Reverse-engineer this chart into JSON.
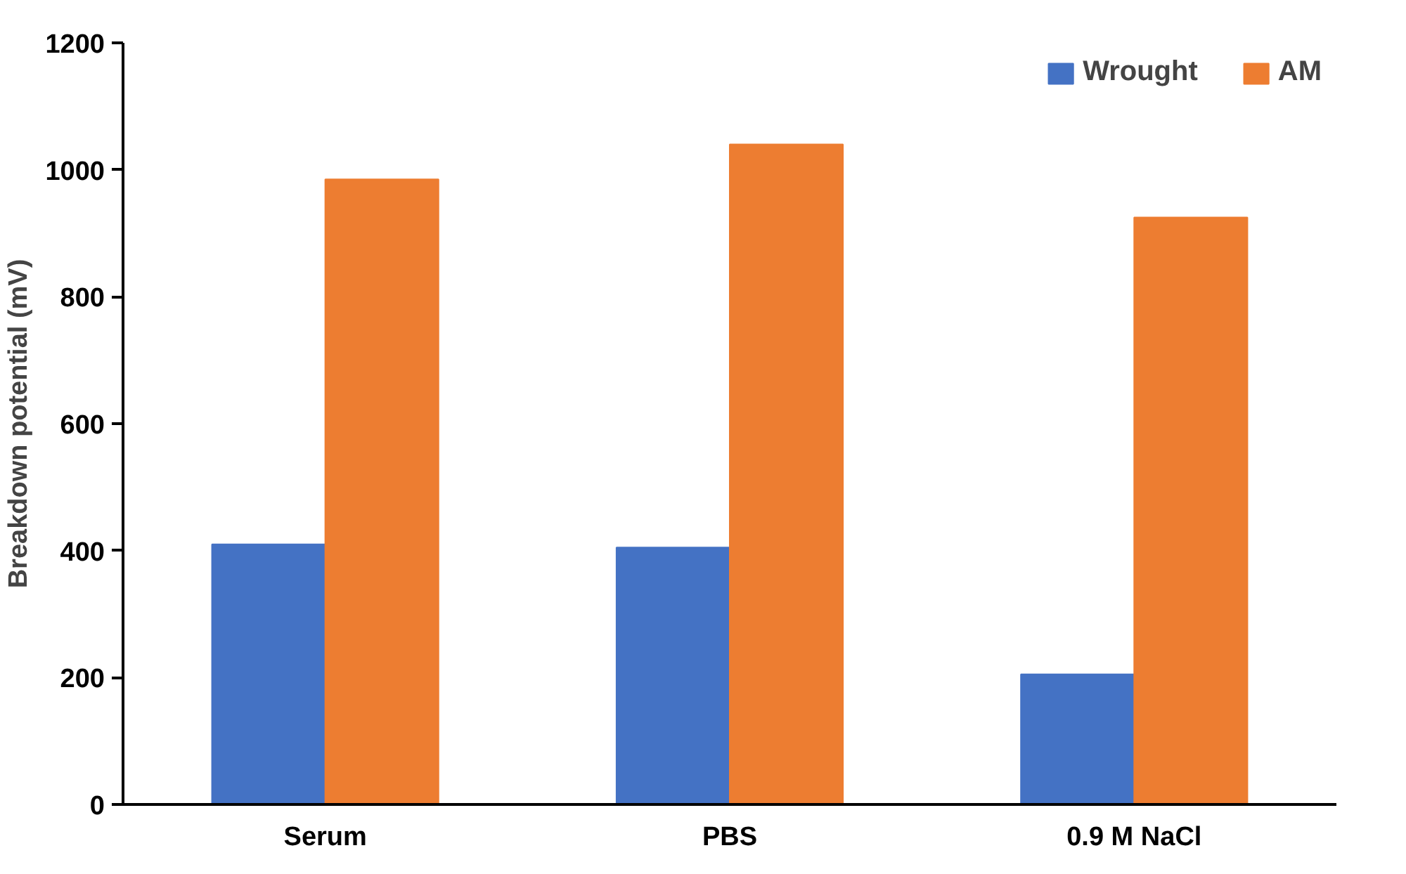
{
  "chart_data": {
    "type": "bar",
    "ylabel": "Breakdown potential (mV)",
    "categories": [
      "Serum",
      "PBS",
      "0.9 M NaCl"
    ],
    "series": [
      {
        "name": "Wrought",
        "color": "#4472c4",
        "values": [
          410,
          405,
          205
        ]
      },
      {
        "name": "AM",
        "color": "#ed7d31",
        "values": [
          985,
          1040,
          925
        ]
      }
    ],
    "ylim": [
      0,
      1200
    ],
    "yticks": [
      0,
      200,
      400,
      600,
      800,
      1000,
      1200
    ],
    "grid": false,
    "legend": "top right"
  }
}
